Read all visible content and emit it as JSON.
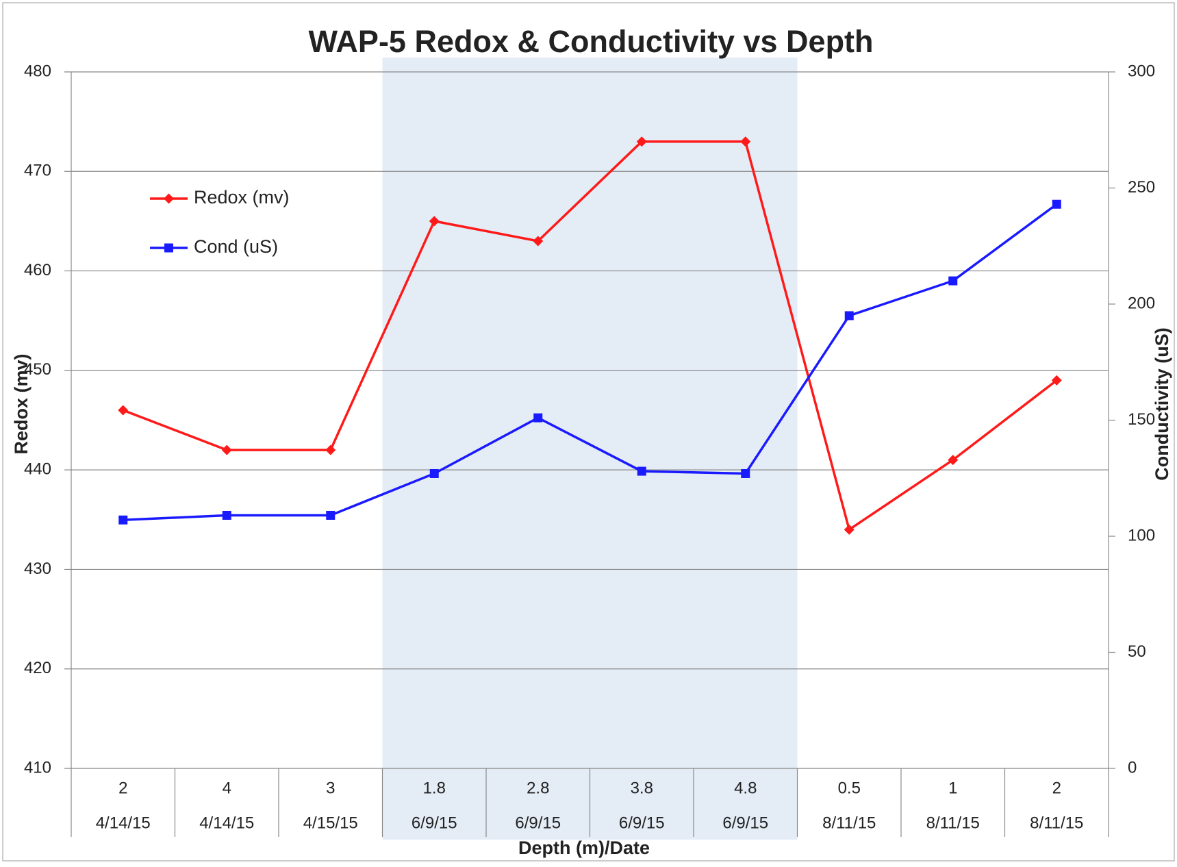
{
  "chart_data": {
    "type": "line",
    "title": "WAP-5 Redox & Conductivity vs Depth",
    "x_label": "Depth (m)/Date",
    "y_label": "Redox (mv)",
    "y2_label": "Conductivity (uS)",
    "categories": [
      "2",
      "4",
      "3",
      "1.8",
      "2.8",
      "3.8",
      "4.8",
      "0.5",
      "1",
      "2"
    ],
    "category_dates": [
      "4/14/15",
      "4/14/15",
      "4/15/15",
      "6/9/15",
      "6/9/15",
      "6/9/15",
      "6/9/15",
      "8/11/15",
      "8/11/15",
      "8/11/15"
    ],
    "highlight_range": [
      3,
      6
    ],
    "highlight_color": "#e4ecf6",
    "series": [
      {
        "name": "Redox (mv)",
        "color": "#ff1a1a",
        "marker": "diamond",
        "values": [
          446,
          442,
          442,
          465,
          463,
          473,
          473,
          434,
          441,
          449
        ]
      },
      {
        "name": "Cond (uS)",
        "color": "#1a1aff",
        "marker": "square",
        "axis": "y2",
        "values": [
          107,
          109,
          109,
          127,
          151,
          128,
          127,
          195,
          210,
          243
        ]
      }
    ],
    "ylim": [
      410,
      480
    ],
    "yticks": [
      410,
      420,
      430,
      440,
      450,
      460,
      470,
      480
    ],
    "y2lim": [
      0,
      300
    ],
    "y2ticks": [
      0,
      50,
      100,
      150,
      200,
      250,
      300
    ],
    "grid": true,
    "legend": "upper left"
  }
}
